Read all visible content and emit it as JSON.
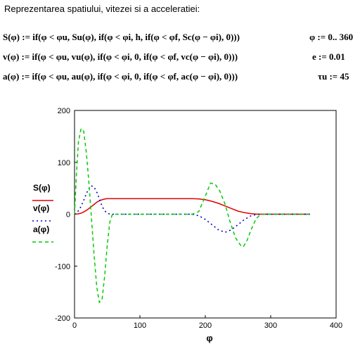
{
  "header": {
    "title": "Reprezentarea spatiului, vitezei si a acceleratiei:",
    "equations": [
      "S(φ) := if(φ < φu, Su(φ), if(φ < φi, h, if(φ < φf, Sc(φ − φi), 0)))",
      "v(φ) := if(φ < φu, vu(φ), if(φ < φi, 0, if(φ < φf, vc(φ − φi), 0)))",
      "a(φ) := if(φ < φu, au(φ), if(φ < φi, 0, if(φ < φf, ac(φ − φi), 0)))"
    ],
    "definitions": [
      "φ := 0.. 360",
      "e := 0.01",
      "τu := 45"
    ]
  },
  "chart_data": {
    "type": "line",
    "xlabel": "φ",
    "xlim": [
      0,
      400
    ],
    "ylim": [
      -200,
      200
    ],
    "xticks": [
      "0",
      "100",
      "200",
      "300",
      "400"
    ],
    "yticks": [
      "200",
      "100",
      "0",
      "-100",
      "-200"
    ],
    "grid": false,
    "legend": {
      "placement": "left",
      "entries": [
        "S(φ)",
        "v(φ)",
        "a(φ)"
      ]
    },
    "series": [
      {
        "name": "S(φ)",
        "color": "#e00000",
        "dash": "solid",
        "x": [
          0,
          5,
          10,
          15,
          20,
          25,
          30,
          35,
          40,
          45,
          50,
          55,
          60,
          80,
          100,
          120,
          140,
          160,
          180,
          190,
          200,
          210,
          220,
          230,
          240,
          250,
          260,
          270,
          280,
          290,
          300,
          320,
          340,
          360
        ],
        "y": [
          0,
          0.5,
          2,
          5,
          9,
          14,
          19,
          24,
          27,
          29,
          30,
          30,
          30,
          30,
          30,
          30,
          30,
          30,
          30,
          29.5,
          28,
          25,
          21,
          16,
          11,
          6,
          3,
          1,
          0,
          0,
          0,
          0,
          0,
          0
        ]
      },
      {
        "name": "v(φ)",
        "color": "#0000cc",
        "dash": "dotted",
        "x": [
          0,
          5,
          10,
          15,
          20,
          25,
          30,
          35,
          40,
          45,
          50,
          55,
          60,
          80,
          100,
          120,
          140,
          160,
          180,
          190,
          200,
          210,
          220,
          230,
          240,
          250,
          260,
          270,
          280,
          290,
          300,
          320,
          340,
          360
        ],
        "y": [
          0,
          5,
          15,
          30,
          45,
          55,
          52,
          40,
          22,
          8,
          2,
          0,
          0,
          0,
          0,
          0,
          0,
          0,
          0,
          -3,
          -10,
          -20,
          -30,
          -35,
          -30,
          -20,
          -10,
          -3,
          0,
          0,
          0,
          0,
          0,
          0
        ]
      },
      {
        "name": "a(φ)",
        "color": "#00cc00",
        "dash": "dashed",
        "x": [
          0,
          3,
          6,
          10,
          14,
          18,
          22,
          26,
          30,
          34,
          38,
          42,
          46,
          50,
          54,
          58,
          62,
          80,
          100,
          120,
          140,
          160,
          180,
          190,
          200,
          208,
          215,
          222,
          230,
          238,
          246,
          254,
          258,
          264,
          270,
          278,
          285,
          290,
          300,
          320,
          340,
          360
        ],
        "y": [
          0,
          80,
          140,
          165,
          160,
          120,
          60,
          -10,
          -80,
          -140,
          -170,
          -165,
          -120,
          -60,
          -15,
          0,
          0,
          0,
          0,
          0,
          0,
          0,
          0,
          5,
          35,
          60,
          58,
          45,
          20,
          -15,
          -45,
          -60,
          -63,
          -50,
          -30,
          -8,
          0,
          0,
          0,
          0,
          0,
          0
        ]
      }
    ]
  }
}
